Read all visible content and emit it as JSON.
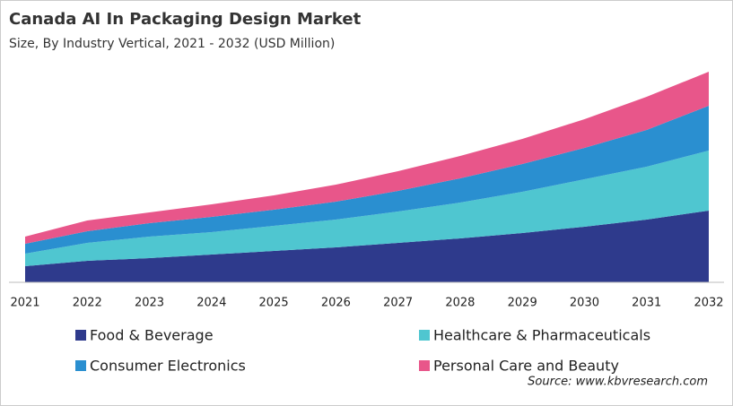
{
  "chart_data": {
    "type": "stacked_area",
    "title": "Canada AI In Packaging Design Market",
    "subtitle": "Size, By Industry Vertical, 2021 - 2032 (USD Million)",
    "source": "Source: www.kbvresearch.com",
    "categories": [
      "2021",
      "2022",
      "2023",
      "2024",
      "2025",
      "2026",
      "2027",
      "2028",
      "2029",
      "2030",
      "2031",
      "2032"
    ],
    "ylim": [
      0,
      235
    ],
    "series": [
      {
        "name": "Food & Beverage",
        "color": "#2e3a8c",
        "values": [
          18,
          24,
          27,
          31,
          35,
          39,
          44,
          49,
          55,
          62,
          70,
          80
        ]
      },
      {
        "name": "Healthcare & Pharmaceuticals",
        "color": "#4fc6d0",
        "values": [
          14,
          20,
          24,
          25,
          28,
          31,
          35,
          40,
          46,
          53,
          59,
          67
        ]
      },
      {
        "name": "Consumer Electronics",
        "color": "#2a8fd0",
        "values": [
          11,
          13,
          15,
          17,
          18,
          20,
          23,
          27,
          31,
          35,
          41,
          50
        ]
      },
      {
        "name": "Personal Care and Beauty",
        "color": "#e8568a",
        "values": [
          8,
          12,
          12,
          14,
          16,
          19,
          22,
          25,
          28,
          32,
          37,
          38
        ]
      }
    ]
  }
}
